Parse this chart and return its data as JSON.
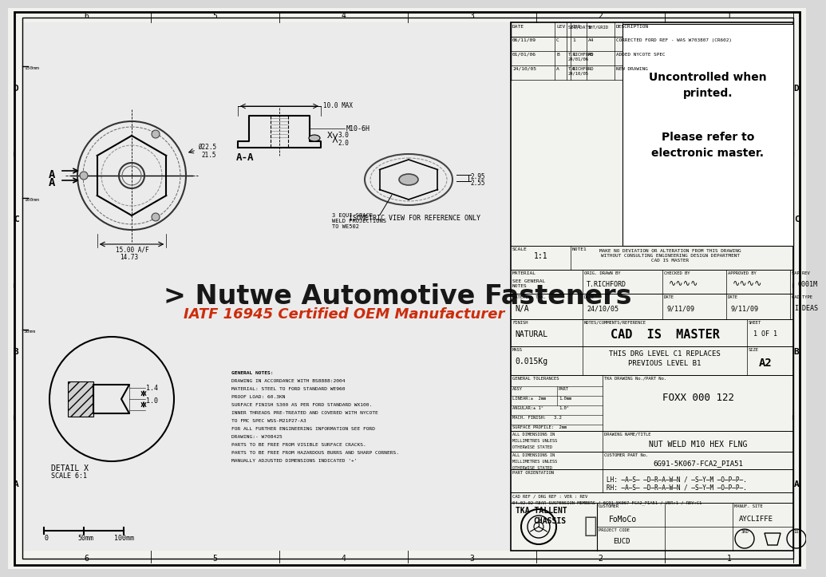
{
  "bg_color": "#d8d8d8",
  "paper_color": "#f2f2ee",
  "title_block": {
    "uncontrolled_text1": "Uncontrolled when",
    "uncontrolled_text2": "printed.",
    "uncontrolled_text3": "Please refer to",
    "uncontrolled_text4": "electronic master.",
    "drawing_no": "FOXX 000 122",
    "drawing_title": "NUT WELD M10 HEX FLNG",
    "customer_part": "6G91-5K067-FCA2_PIA51",
    "scale": "1:1",
    "material": "SEE GENERAL\nNOTES",
    "material_thk": "N/A",
    "finish": "NATURAL",
    "mass": "0.015Kg",
    "sheet": "1 OF 1",
    "size": "A2",
    "orig_drawn": "T.RICHFORD",
    "date_drawn": "24/10/05",
    "date_checked": "9/11/09",
    "date_approved": "9/11/09",
    "sap_rev": "0001M",
    "cad_type": "I-DEAS",
    "customer": "FoMoCo",
    "manuf_site": "AYCLIFFE",
    "project_code": "EUCD",
    "tka_line1": "TKA TALLENT",
    "tka_line2": "CHASSIS",
    "cad_ref": "04.02.02 REAR SUSPENSION MEMBERS / 6G91-5K067-FCA2_PIA51 / VER:1 / REV:C1",
    "part_orientation_lh": "LH: AS DRAWN / SYM OPP.",
    "part_orientation_rh": "RH: AS DRAWN / SYM OPP.",
    "note1": "MAKE NO DEVIATION OR ALTERATION FROM THIS DRAWING\nWITHOUT CONSULTING ENGINEERING DESIGN DEPARTMENT\nCAD IS MASTER",
    "notes_cad": "CAD  IS  MASTER",
    "notes_drg": "THIS DRG LEVEL C1 REPLACES",
    "notes_prev": "PREVIOUS LEVEL B1",
    "rev_rows": [
      {
        "date": "06/11/09",
        "lev": "C",
        "chg": "1",
        "sht": "A4",
        "desc": "CORRECTED FORD REF - WAS W703807 (CR602)",
        "sig": ""
      },
      {
        "date": "01/01/06",
        "lev": "B",
        "chg": "1",
        "sht": "A5",
        "desc": "ADDED NYCOTE SPEC",
        "sig": "T.RICHFORD\n24/01/06"
      },
      {
        "date": "24/10/05",
        "lev": "A",
        "chg": "0",
        "sht": "-",
        "desc": "NEW DRAWING",
        "sig": "T.RICHFORD\n24/10/05"
      }
    ]
  },
  "general_notes": [
    "GENERAL NOTES:",
    "DRAWING IN ACCORDANCE WITH BS8888:2004",
    "MATERIAL: STEEL TO FORD STANDARD WE960",
    "PROOF LOAD: 60.3KN",
    "SURFACE FINISH S300 AS PER FORD STANDARD WX100.",
    "INNER THREADS PRE-TREATED AND COVERED WITH NYCOTE",
    "TO FMC SPEC WSS-M21P27-A3",
    "FOR ALL FURTHER ENGINEERING INFORMATION SEE FORD",
    "DRAWING:- W708425",
    "PARTS TO BE FREE FROM VISIBLE SURFACE CRACKS.",
    "PARTS TO BE FREE FROM HAZARDOUS BURRS AND SHARP CORNERS.",
    "MANUALLY ADJUSTED DIMENSIONS INDICATED '+'"
  ],
  "watermark_text": "> Nutwe Automotive Fasteners",
  "watermark_sub": "IATF 16945 Certified OEM Manufacturer"
}
